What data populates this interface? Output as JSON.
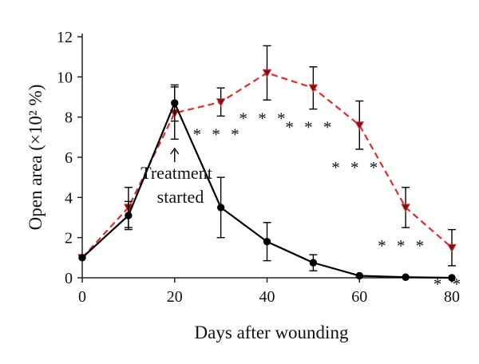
{
  "chart_data": {
    "type": "line",
    "title": "",
    "xlabel": "Days after wounding",
    "ylabel": "Open area (×10² %)",
    "xlim": [
      0,
      80
    ],
    "ylim": [
      0,
      12
    ],
    "xticks": [
      0,
      20,
      40,
      60,
      80
    ],
    "yticks": [
      0,
      2,
      4,
      6,
      8,
      10,
      12
    ],
    "grid": false,
    "legend": "none",
    "series": [
      {
        "color": "#000000",
        "line_style": "solid",
        "marker": "circle",
        "x": [
          0,
          10,
          20,
          30,
          40,
          50,
          60,
          70,
          80
        ],
        "y": [
          1.0,
          3.1,
          8.7,
          3.5,
          1.8,
          0.75,
          0.1,
          0.03,
          0.0
        ],
        "error": [
          0,
          0.7,
          0.9,
          1.5,
          0.95,
          0.4,
          0,
          0,
          0
        ]
      },
      {
        "color": "#e8282c",
        "line_style": "dashed",
        "marker": "triangle-down",
        "x": [
          0,
          10,
          20,
          30,
          40,
          50,
          60,
          70,
          80
        ],
        "y": [
          1.0,
          3.5,
          8.2,
          8.75,
          10.2,
          9.45,
          7.6,
          3.5,
          1.5
        ],
        "error": [
          0,
          1.0,
          1.3,
          0.7,
          1.35,
          1.05,
          1.2,
          1.0,
          0.9
        ]
      }
    ],
    "annotations": [
      {
        "text": "Treatment",
        "x": 20
      },
      {
        "text": "started",
        "x": 20
      }
    ],
    "significance": [
      {
        "x": 30,
        "label": "* * *"
      },
      {
        "x": 40,
        "label": "* * *"
      },
      {
        "x": 50,
        "label": "* * *"
      },
      {
        "x": 60,
        "label": "* * *"
      },
      {
        "x": 70,
        "label": "* * *"
      },
      {
        "x": 80,
        "label": "* *"
      }
    ]
  }
}
